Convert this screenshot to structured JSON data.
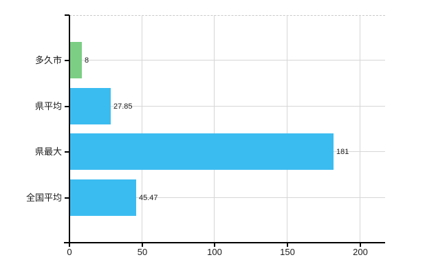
{
  "chart_data": {
    "type": "bar",
    "orientation": "horizontal",
    "title": "",
    "xlabel": "",
    "ylabel": "",
    "categories": [
      "多久市",
      "県平均",
      "県最大",
      "全国平均"
    ],
    "values": [
      8,
      27.85,
      181,
      45.47
    ],
    "value_labels": [
      "8",
      "27.85",
      "181",
      "45.47"
    ],
    "bar_colors": [
      "#7bce84",
      "#3bbcf0",
      "#3bbcf0",
      "#3bbcf0"
    ],
    "x_axis": {
      "min": 0,
      "max": 217,
      "ticks": [
        0,
        50,
        100,
        150,
        200
      ],
      "tick_labels": [
        "0",
        "50",
        "100",
        "150",
        "200"
      ]
    },
    "grid": true,
    "legend": false,
    "colors": {
      "bar_blue": "#3bbcf0",
      "bar_green": "#7bce84",
      "gridline": "#d6d6d6",
      "top_border": "#c9c9c9",
      "axis": "#000000",
      "text": "#1a1a1a",
      "background": "#ffffff"
    }
  }
}
